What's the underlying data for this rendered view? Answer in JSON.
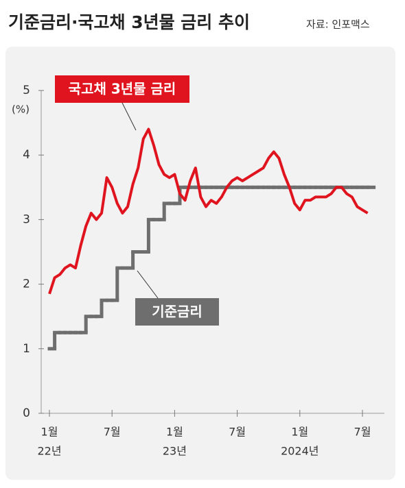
{
  "chart_data": {
    "type": "line",
    "title": "기준금리·국고채 3년물 금리 추이",
    "source": "자료: 인포맥스",
    "y_unit": "(%)",
    "categories": [
      "1월",
      null,
      null,
      null,
      null,
      null,
      null,
      null,
      null,
      null,
      null,
      null,
      "7월",
      null,
      null,
      null,
      null,
      null,
      null,
      null,
      null,
      null,
      null,
      null,
      "1월",
      null,
      null,
      null,
      null,
      null,
      null,
      null,
      null,
      null,
      null,
      null,
      "7월",
      null,
      null,
      null,
      null,
      null,
      null,
      null,
      null,
      null,
      null,
      null,
      "1월",
      null,
      null,
      null,
      null,
      null,
      null,
      null,
      null,
      null,
      null,
      null,
      "7월",
      null
    ],
    "category_years": [
      "22년",
      null,
      null,
      null,
      null,
      null,
      null,
      null,
      null,
      null,
      null,
      null,
      null,
      null,
      null,
      null,
      null,
      null,
      null,
      null,
      null,
      null,
      null,
      null,
      "23년",
      null,
      null,
      null,
      null,
      null,
      null,
      null,
      null,
      null,
      null,
      null,
      null,
      null,
      null,
      null,
      null,
      null,
      null,
      null,
      null,
      null,
      null,
      null,
      "2024년",
      null,
      null,
      null,
      null,
      null,
      null,
      null,
      null,
      null,
      null,
      null,
      null,
      null
    ],
    "series": [
      {
        "name": "국고채 3년물 금리",
        "color": "#e0141e",
        "style": "line",
        "values": [
          1.85,
          2.1,
          2.15,
          2.25,
          2.3,
          2.25,
          2.6,
          2.9,
          3.1,
          3.0,
          3.1,
          3.65,
          3.5,
          3.25,
          3.1,
          3.2,
          3.55,
          3.8,
          4.25,
          4.4,
          4.15,
          3.85,
          3.7,
          3.65,
          3.7,
          3.4,
          3.3,
          3.6,
          3.8,
          3.35,
          3.2,
          3.3,
          3.25,
          3.35,
          3.5,
          3.6,
          3.65,
          3.6,
          3.65,
          3.7,
          3.75,
          3.8,
          3.95,
          4.05,
          3.95,
          3.7,
          3.5,
          3.25,
          3.15,
          3.3,
          3.3,
          3.35,
          3.35,
          3.35,
          3.4,
          3.5,
          3.5,
          3.4,
          3.35,
          3.2,
          3.15,
          3.1
        ]
      },
      {
        "name": "기준금리",
        "color": "#6e6e6e",
        "style": "step",
        "values": [
          1.0,
          1.25,
          1.25,
          1.25,
          1.25,
          1.25,
          1.25,
          1.5,
          1.5,
          1.5,
          1.75,
          1.75,
          1.75,
          2.25,
          2.25,
          2.25,
          2.5,
          2.5,
          2.5,
          3.0,
          3.0,
          3.0,
          3.25,
          3.25,
          3.25,
          3.5,
          3.5,
          3.5,
          3.5,
          3.5,
          3.5,
          3.5,
          3.5,
          3.5,
          3.5,
          3.5,
          3.5,
          3.5,
          3.5,
          3.5,
          3.5,
          3.5,
          3.5,
          3.5,
          3.5,
          3.5,
          3.5,
          3.5,
          3.5,
          3.5,
          3.5,
          3.5,
          3.5,
          3.5,
          3.5,
          3.5,
          3.5,
          3.5,
          3.5,
          3.5,
          3.5,
          3.5
        ]
      }
    ],
    "ylim": [
      0,
      5
    ],
    "yticks": [
      0,
      1,
      2,
      3,
      4,
      5
    ]
  }
}
